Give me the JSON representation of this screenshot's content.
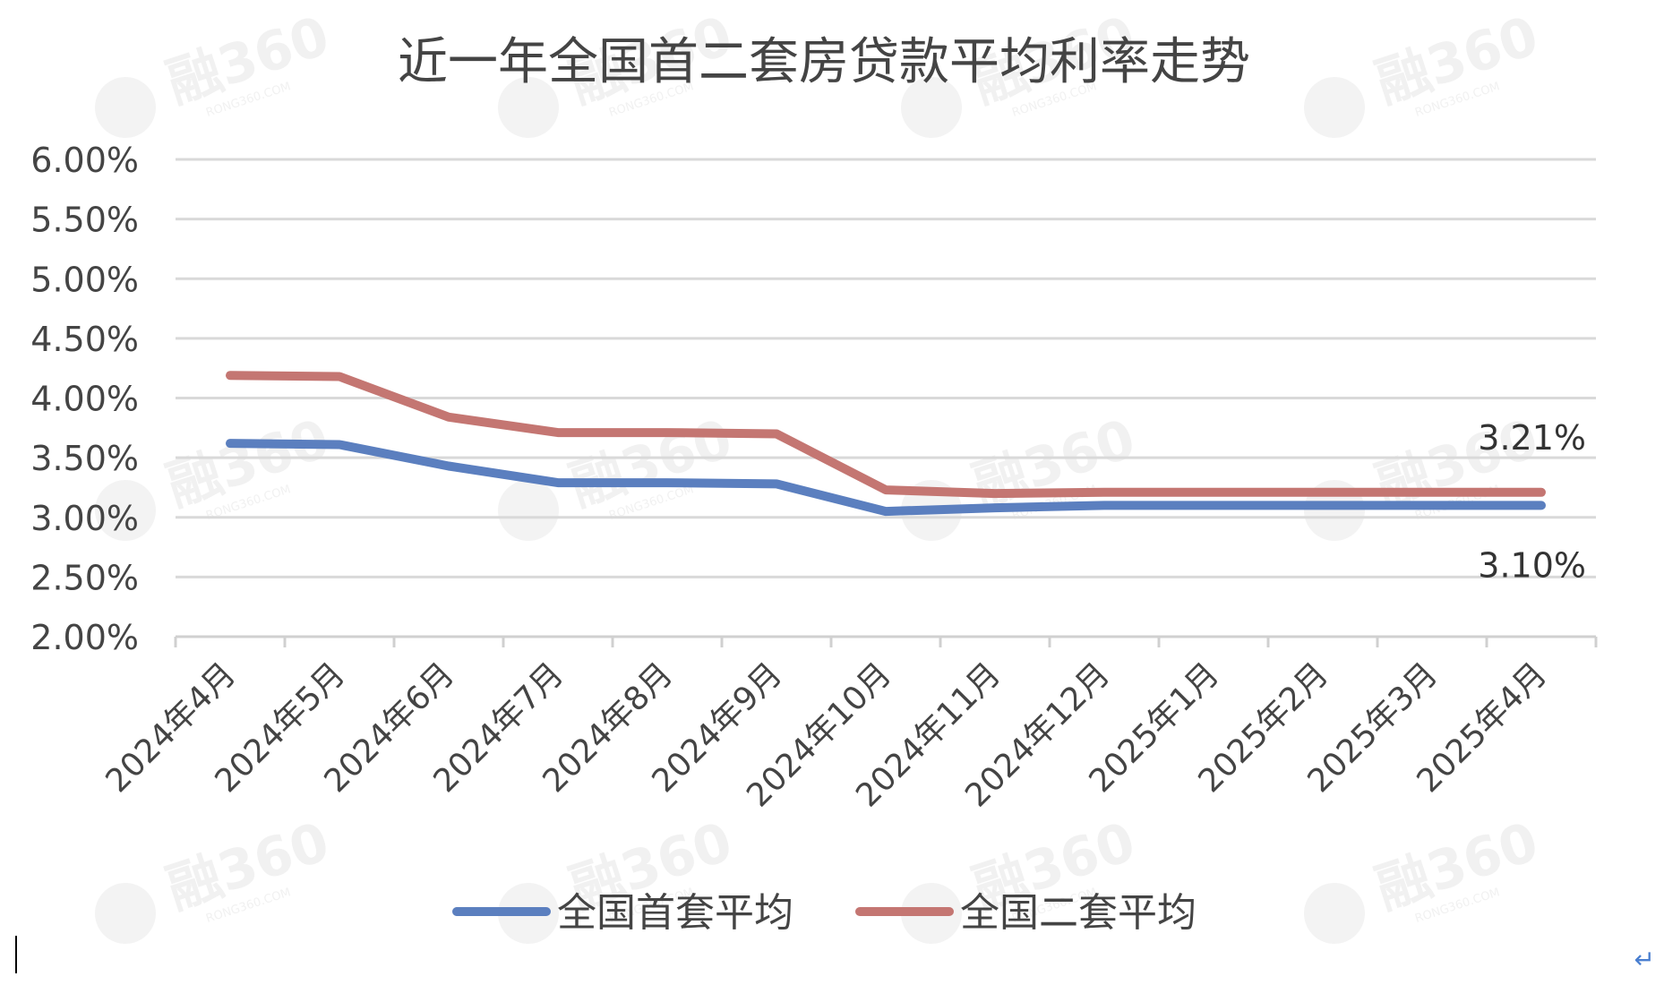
{
  "chart_data": {
    "type": "line",
    "title": "近一年全国首二套房贷款平均利率走势",
    "categories": [
      "2024年4月",
      "2024年5月",
      "2024年6月",
      "2024年7月",
      "2024年8月",
      "2024年9月",
      "2024年10月",
      "2024年11月",
      "2024年12月",
      "2025年1月",
      "2025年2月",
      "2025年3月",
      "2025年4月"
    ],
    "y_ticks": [
      "2.00%",
      "2.50%",
      "3.00%",
      "3.50%",
      "4.00%",
      "4.50%",
      "5.00%",
      "5.50%",
      "6.00%"
    ],
    "ylim": [
      2.0,
      6.0
    ],
    "grid": true,
    "legend_position": "bottom",
    "series": [
      {
        "name": "全国首套平均",
        "color": "#5b7fbf",
        "values": [
          3.62,
          3.61,
          3.43,
          3.29,
          3.29,
          3.28,
          3.05,
          3.08,
          3.1,
          3.1,
          3.1,
          3.1,
          3.1
        ],
        "end_label": "3.10%"
      },
      {
        "name": "全国二套平均",
        "color": "#c47672",
        "values": [
          4.19,
          4.18,
          3.84,
          3.71,
          3.71,
          3.7,
          3.23,
          3.2,
          3.21,
          3.21,
          3.21,
          3.21,
          3.21
        ],
        "end_label": "3.21%"
      }
    ],
    "watermark": "融360",
    "watermark_sub": "RONG360.COM"
  },
  "corner_mark": "↵"
}
